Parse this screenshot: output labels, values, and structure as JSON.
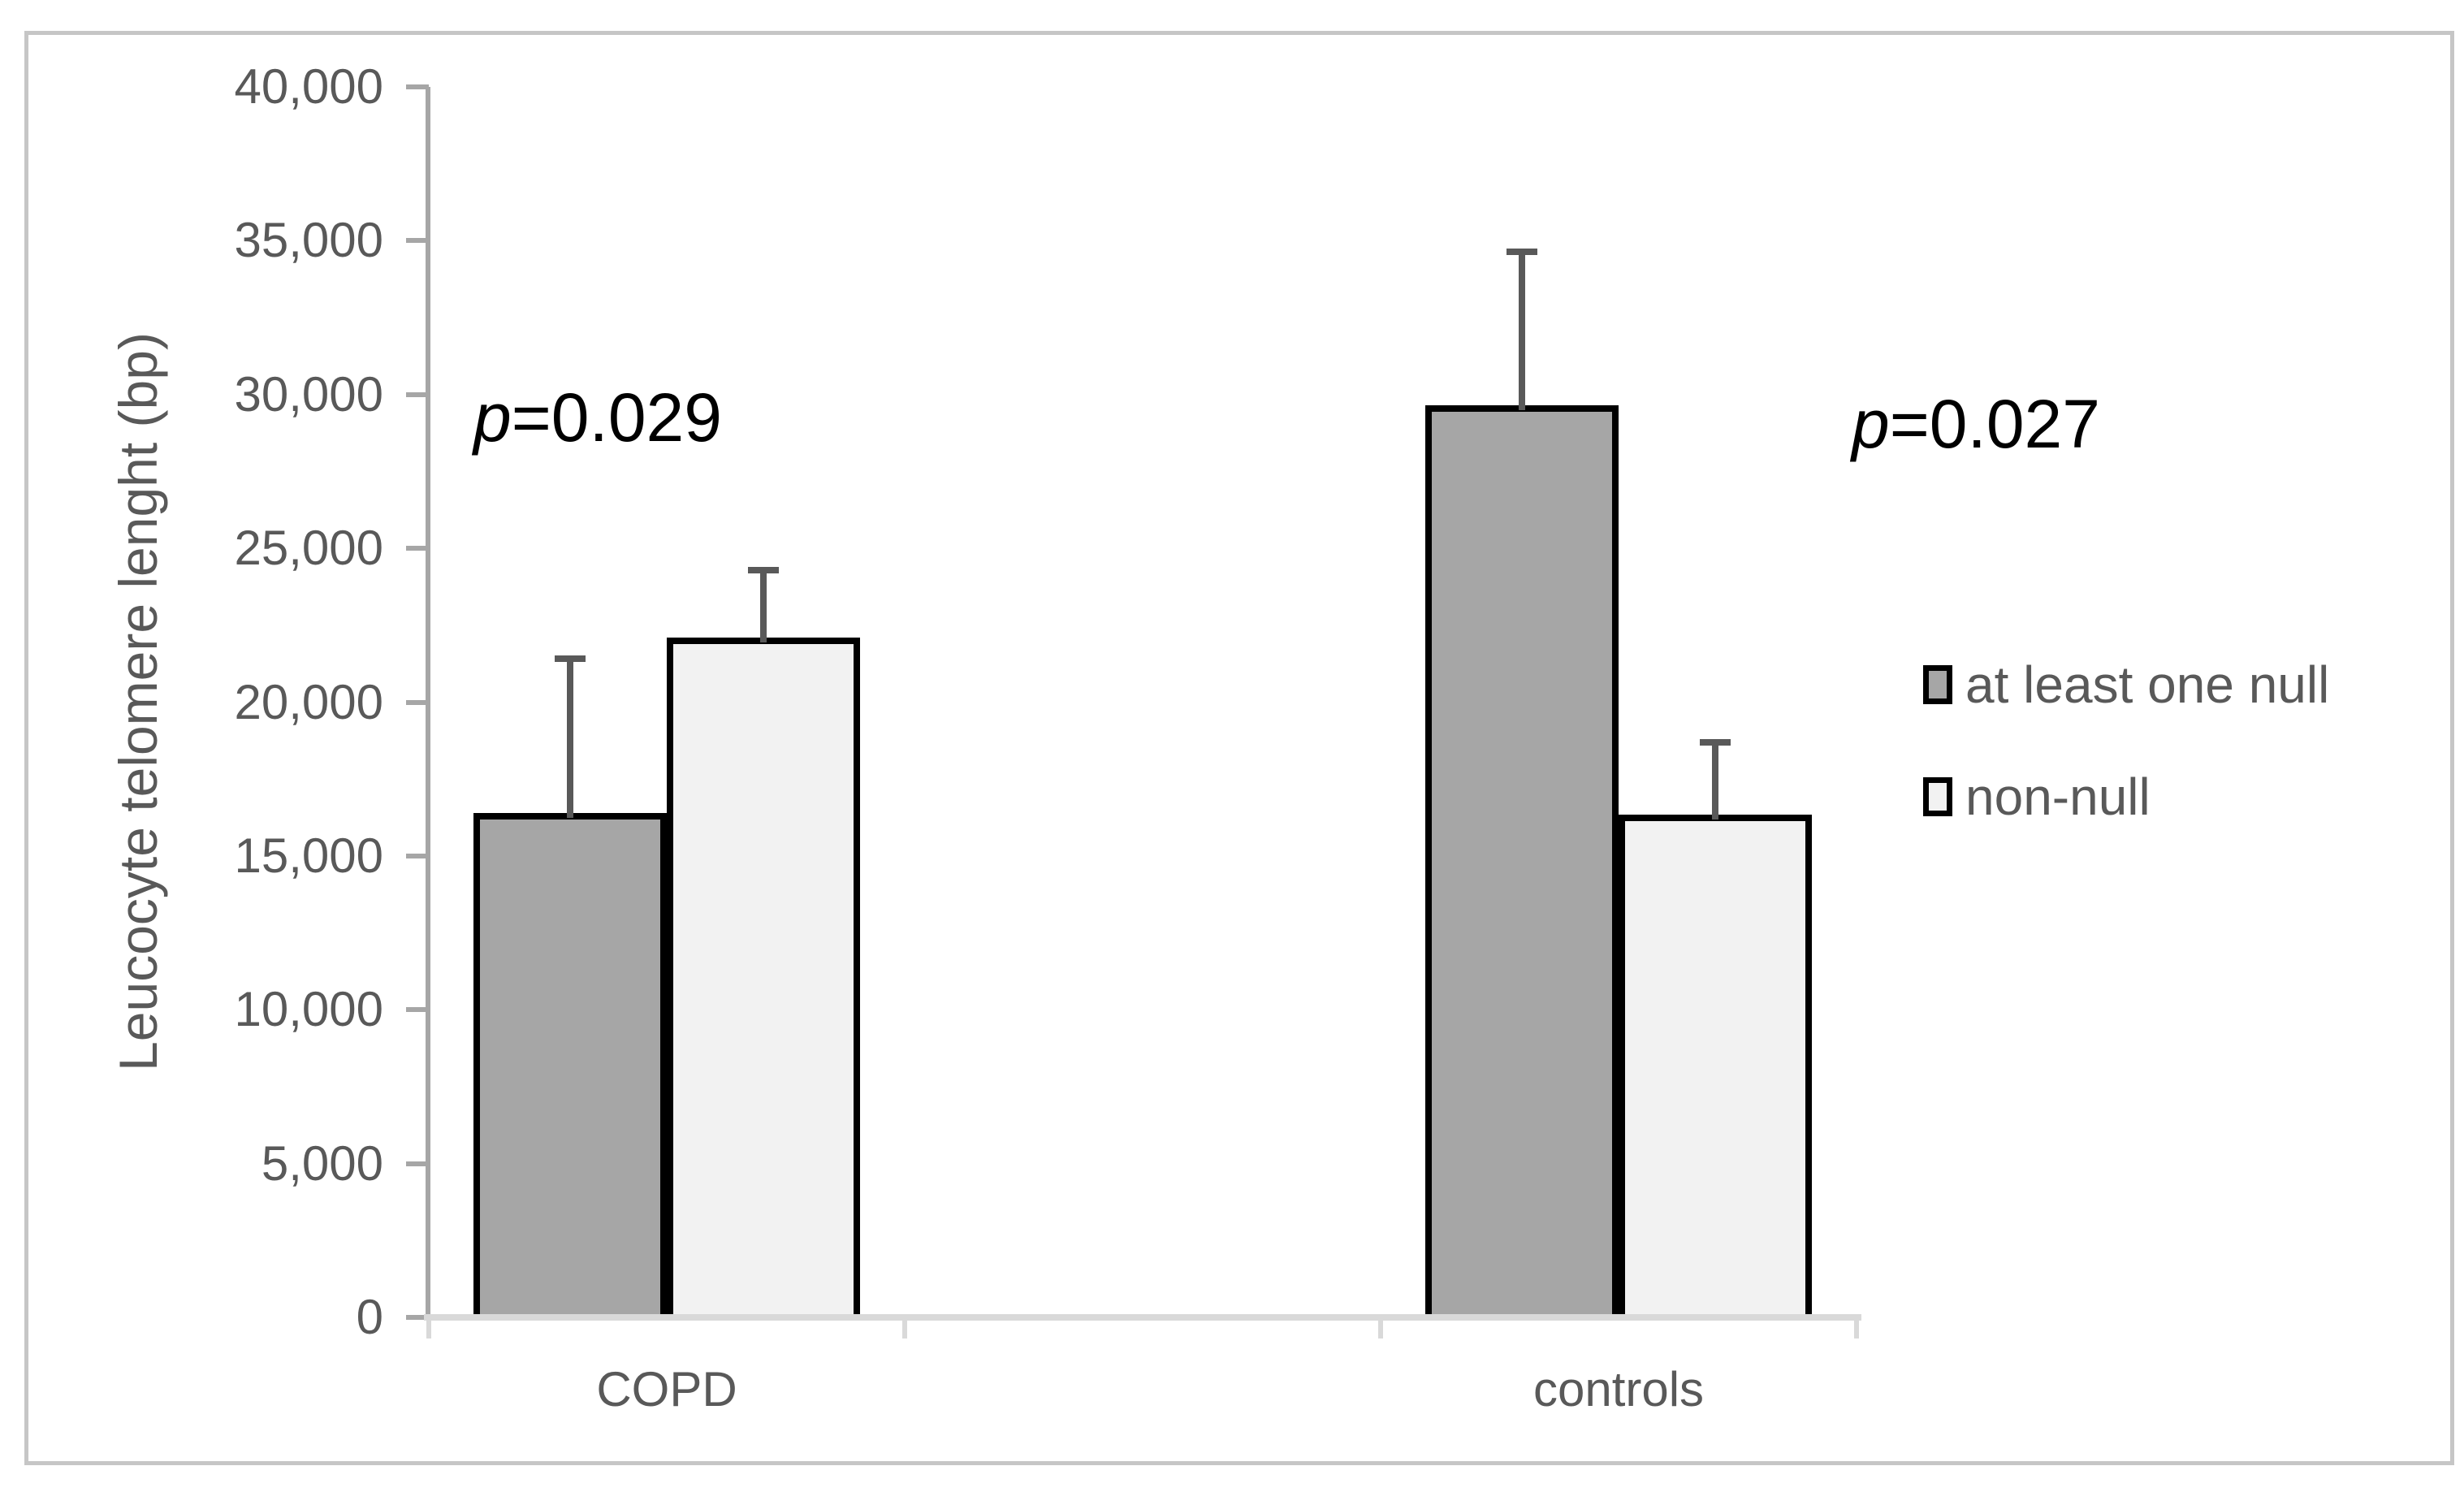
{
  "figure": {
    "background": "#ffffff",
    "border_color": "#c6c6c6"
  },
  "chart_data": {
    "type": "bar",
    "title": "",
    "xlabel": "",
    "ylabel": "Leucocyte telomere lenght (bp)",
    "categories": [
      "COPD",
      "controls"
    ],
    "series": [
      {
        "name": "at least one null",
        "color": "#a6a6a6",
        "values": [
          16400,
          29650
        ],
        "error_plus": [
          5000,
          5000
        ]
      },
      {
        "name": "non-null",
        "color": "#f2f2f2",
        "values": [
          22100,
          16350
        ],
        "error_plus": [
          2200,
          2350
        ]
      }
    ],
    "ylim": [
      0,
      40000
    ],
    "yticks": [
      0,
      5000,
      10000,
      15000,
      20000,
      25000,
      30000,
      35000,
      40000
    ],
    "ytick_labels": [
      "0",
      "5,000",
      "10,000",
      "15,000",
      "20,000",
      "25,000",
      "30,000",
      "35,000",
      "40,000"
    ],
    "grid": false,
    "legend_position": "right",
    "annotations": [
      {
        "prefix": "p",
        "rest": "=0.029",
        "anchor": "COPD"
      },
      {
        "prefix": "p",
        "rest": "=0.027",
        "anchor": "controls"
      }
    ],
    "bar_border_color": "#000000",
    "error_bar_color": "#595959",
    "axis_line_color": "#a6a6a6",
    "baseline_color": "#d9d9d9",
    "tick_label_color": "#595959",
    "annotation_color": "#000000"
  }
}
